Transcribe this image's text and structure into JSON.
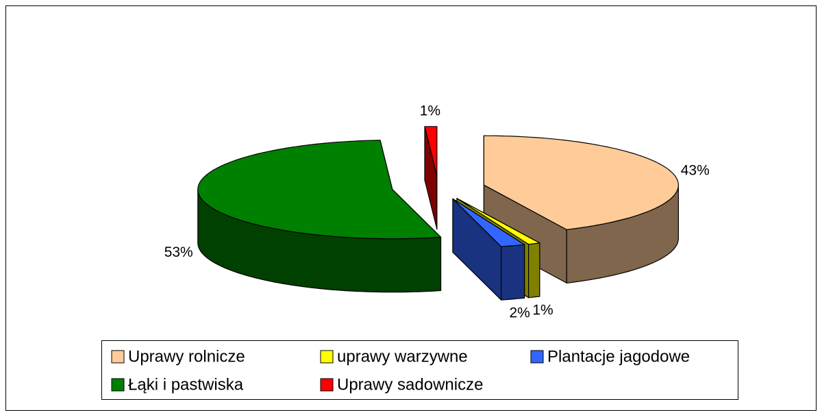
{
  "chart_data": {
    "type": "pie",
    "three_d": true,
    "exploded": true,
    "categories": [
      "Uprawy rolnicze",
      "uprawy warzywne",
      "Plantacje jagodowe",
      "Łąki i pastwiska",
      "Uprawy sadownicze"
    ],
    "values": [
      43,
      1,
      2,
      53,
      1
    ],
    "value_labels": [
      "43%",
      "1%",
      "2%",
      "53%",
      "1%"
    ],
    "colors": [
      "#ffcc99",
      "#ffff00",
      "#3366ff",
      "#008000",
      "#ff0000"
    ],
    "legend": "bottom"
  }
}
